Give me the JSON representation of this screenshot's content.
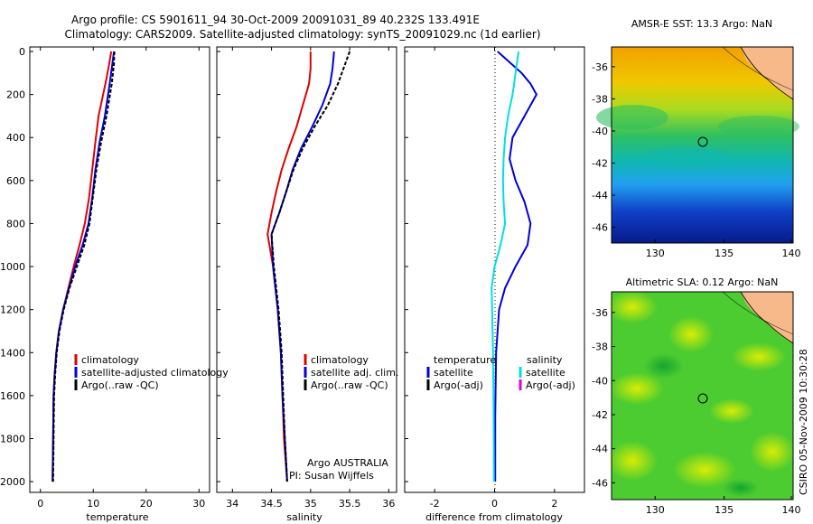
{
  "title": {
    "line1": "Argo profile: CS 5901611_94 30-Oct-2009 20091031_89 40.232S 133.491E",
    "line2": "Climatology: CARS2009. Satellite-adjusted climatology: synTS_20091029.nc (1d earlier)"
  },
  "colors": {
    "climatology": "#e00000",
    "satellite": "#0000e0",
    "argo": "#000000",
    "cyan": "#00e0e0",
    "magenta": "#e000e0"
  },
  "chart_data": [
    {
      "type": "line",
      "xlabel": "temperature",
      "ylabel": "",
      "xlim": [
        -2,
        32
      ],
      "ylim": [
        2050,
        0
      ],
      "xticks": [
        0,
        10,
        20,
        30
      ],
      "yticks": [
        0,
        200,
        400,
        600,
        800,
        1000,
        1200,
        1400,
        1600,
        1800,
        2000
      ],
      "legend": [
        "climatology",
        "satellite-adjusted climatology",
        "Argo(..raw -QC)"
      ],
      "series": [
        {
          "name": "climatology",
          "color": "#e00000",
          "x": [
            13.4,
            13.0,
            12.3,
            11.0,
            10.4,
            9.8,
            9.2,
            8.4,
            7.4,
            6.3,
            5.3,
            4.3,
            3.5,
            3.0,
            2.7,
            2.5,
            2.4,
            2.3
          ],
          "y": [
            0,
            60,
            150,
            300,
            420,
            550,
            680,
            800,
            900,
            1000,
            1100,
            1200,
            1300,
            1400,
            1500,
            1600,
            1800,
            2000
          ]
        },
        {
          "name": "satellite-adjusted climatology",
          "color": "#0000e0",
          "x": [
            13.9,
            13.6,
            13.1,
            12.2,
            11.2,
            10.4,
            9.8,
            9.1,
            8.0,
            6.6,
            5.4,
            4.3,
            3.5,
            3.0,
            2.7,
            2.5,
            2.4,
            2.3
          ],
          "y": [
            0,
            60,
            150,
            300,
            420,
            550,
            680,
            800,
            900,
            1000,
            1100,
            1200,
            1300,
            1400,
            1500,
            1600,
            1800,
            2000
          ]
        },
        {
          "name": "Argo(..raw -QC)",
          "color": "#000000",
          "x": [
            14.0,
            13.9,
            13.5,
            12.5,
            11.5,
            10.6,
            9.9,
            9.3,
            8.3,
            6.9,
            5.5,
            4.4,
            3.6,
            3.1,
            2.8,
            2.6,
            2.5,
            2.4
          ],
          "y": [
            0,
            60,
            150,
            300,
            420,
            550,
            680,
            800,
            900,
            1000,
            1100,
            1200,
            1300,
            1400,
            1500,
            1600,
            1800,
            2000
          ]
        }
      ]
    },
    {
      "type": "line",
      "xlabel": "salinity",
      "xlim": [
        33.8,
        36.1
      ],
      "ylim": [
        2050,
        0
      ],
      "xticks": [
        34,
        34.5,
        35,
        35.5,
        36
      ],
      "legend": [
        "climatology",
        "satellite adj. clim.",
        "Argo(..raw -QC)"
      ],
      "annotation": [
        "Argo AUSTRALIA",
        "PI: Susan Wijffels"
      ],
      "series": [
        {
          "name": "climatology",
          "color": "#e00000",
          "x": [
            35.0,
            35.0,
            34.98,
            34.9,
            34.82,
            34.72,
            34.63,
            34.56,
            34.5,
            34.45,
            34.52,
            34.58,
            34.62,
            34.64,
            34.66,
            34.7
          ],
          "y": [
            0,
            80,
            150,
            250,
            350,
            450,
            550,
            650,
            750,
            850,
            1000,
            1200,
            1400,
            1600,
            1800,
            2000
          ]
        },
        {
          "name": "satellite adj. clim.",
          "color": "#0000e0",
          "x": [
            35.3,
            35.28,
            35.25,
            35.15,
            35.02,
            34.88,
            34.77,
            34.69,
            34.6,
            34.5,
            34.52,
            34.58,
            34.62,
            34.64,
            34.67,
            34.7
          ],
          "y": [
            0,
            80,
            150,
            250,
            350,
            450,
            550,
            650,
            750,
            850,
            1000,
            1200,
            1400,
            1600,
            1800,
            2000
          ]
        },
        {
          "name": "Argo(..raw -QC)",
          "color": "#000000",
          "x": [
            35.5,
            35.42,
            35.35,
            35.22,
            35.05,
            34.9,
            34.78,
            34.69,
            34.6,
            34.5,
            34.53,
            34.59,
            34.63,
            34.65,
            34.67,
            34.7
          ],
          "y": [
            0,
            80,
            150,
            250,
            350,
            450,
            550,
            650,
            750,
            850,
            1000,
            1200,
            1400,
            1600,
            1800,
            2000
          ]
        }
      ]
    },
    {
      "type": "line",
      "xlabel": "difference from climatology",
      "xlim": [
        -3,
        3
      ],
      "ylim": [
        2050,
        0
      ],
      "xticks": [
        -2,
        0,
        2
      ],
      "legend_titles": [
        "temperature",
        "salinity"
      ],
      "legend": [
        "satellite",
        "Argo(-adj)",
        "satellite",
        "Argo(-adj)"
      ],
      "series": [
        {
          "name": "satellite",
          "color": "#0000e0",
          "x": [
            0.1,
            0.5,
            0.9,
            1.2,
            1.4,
            1.0,
            0.6,
            0.5,
            0.7,
            1.0,
            1.2,
            1.1,
            0.7,
            0.35,
            0.15,
            0.05,
            0.02,
            0.02
          ],
          "y": [
            0,
            50,
            100,
            150,
            200,
            300,
            400,
            500,
            600,
            700,
            800,
            900,
            1000,
            1100,
            1200,
            1400,
            1700,
            2000
          ]
        },
        {
          "name": "satellite",
          "color": "#00e0e0",
          "x": [
            0.8,
            0.75,
            0.7,
            0.65,
            0.6,
            0.45,
            0.35,
            0.3,
            0.28,
            0.3,
            0.35,
            0.2,
            0.0,
            -0.1,
            -0.08,
            -0.05,
            -0.03,
            -0.02
          ],
          "y": [
            0,
            50,
            100,
            150,
            200,
            300,
            400,
            500,
            600,
            700,
            800,
            900,
            1000,
            1100,
            1200,
            1400,
            1700,
            2000
          ]
        }
      ]
    }
  ],
  "maps": [
    {
      "title": "AMSR-E SST: 13.3  Argo: NaN",
      "xticks": [
        "130",
        "135",
        "140"
      ],
      "yticks": [
        "-36",
        "-38",
        "-40",
        "-42",
        "-44",
        "-46"
      ]
    },
    {
      "title": "Altimetric SLA: 0.12  Argo: NaN",
      "xticks": [
        "130",
        "135",
        "140"
      ],
      "yticks": [
        "-36",
        "-38",
        "-40",
        "-42",
        "-44",
        "-46"
      ]
    }
  ],
  "stamp": "CSIRO 05-Nov-2009 10:30:28"
}
